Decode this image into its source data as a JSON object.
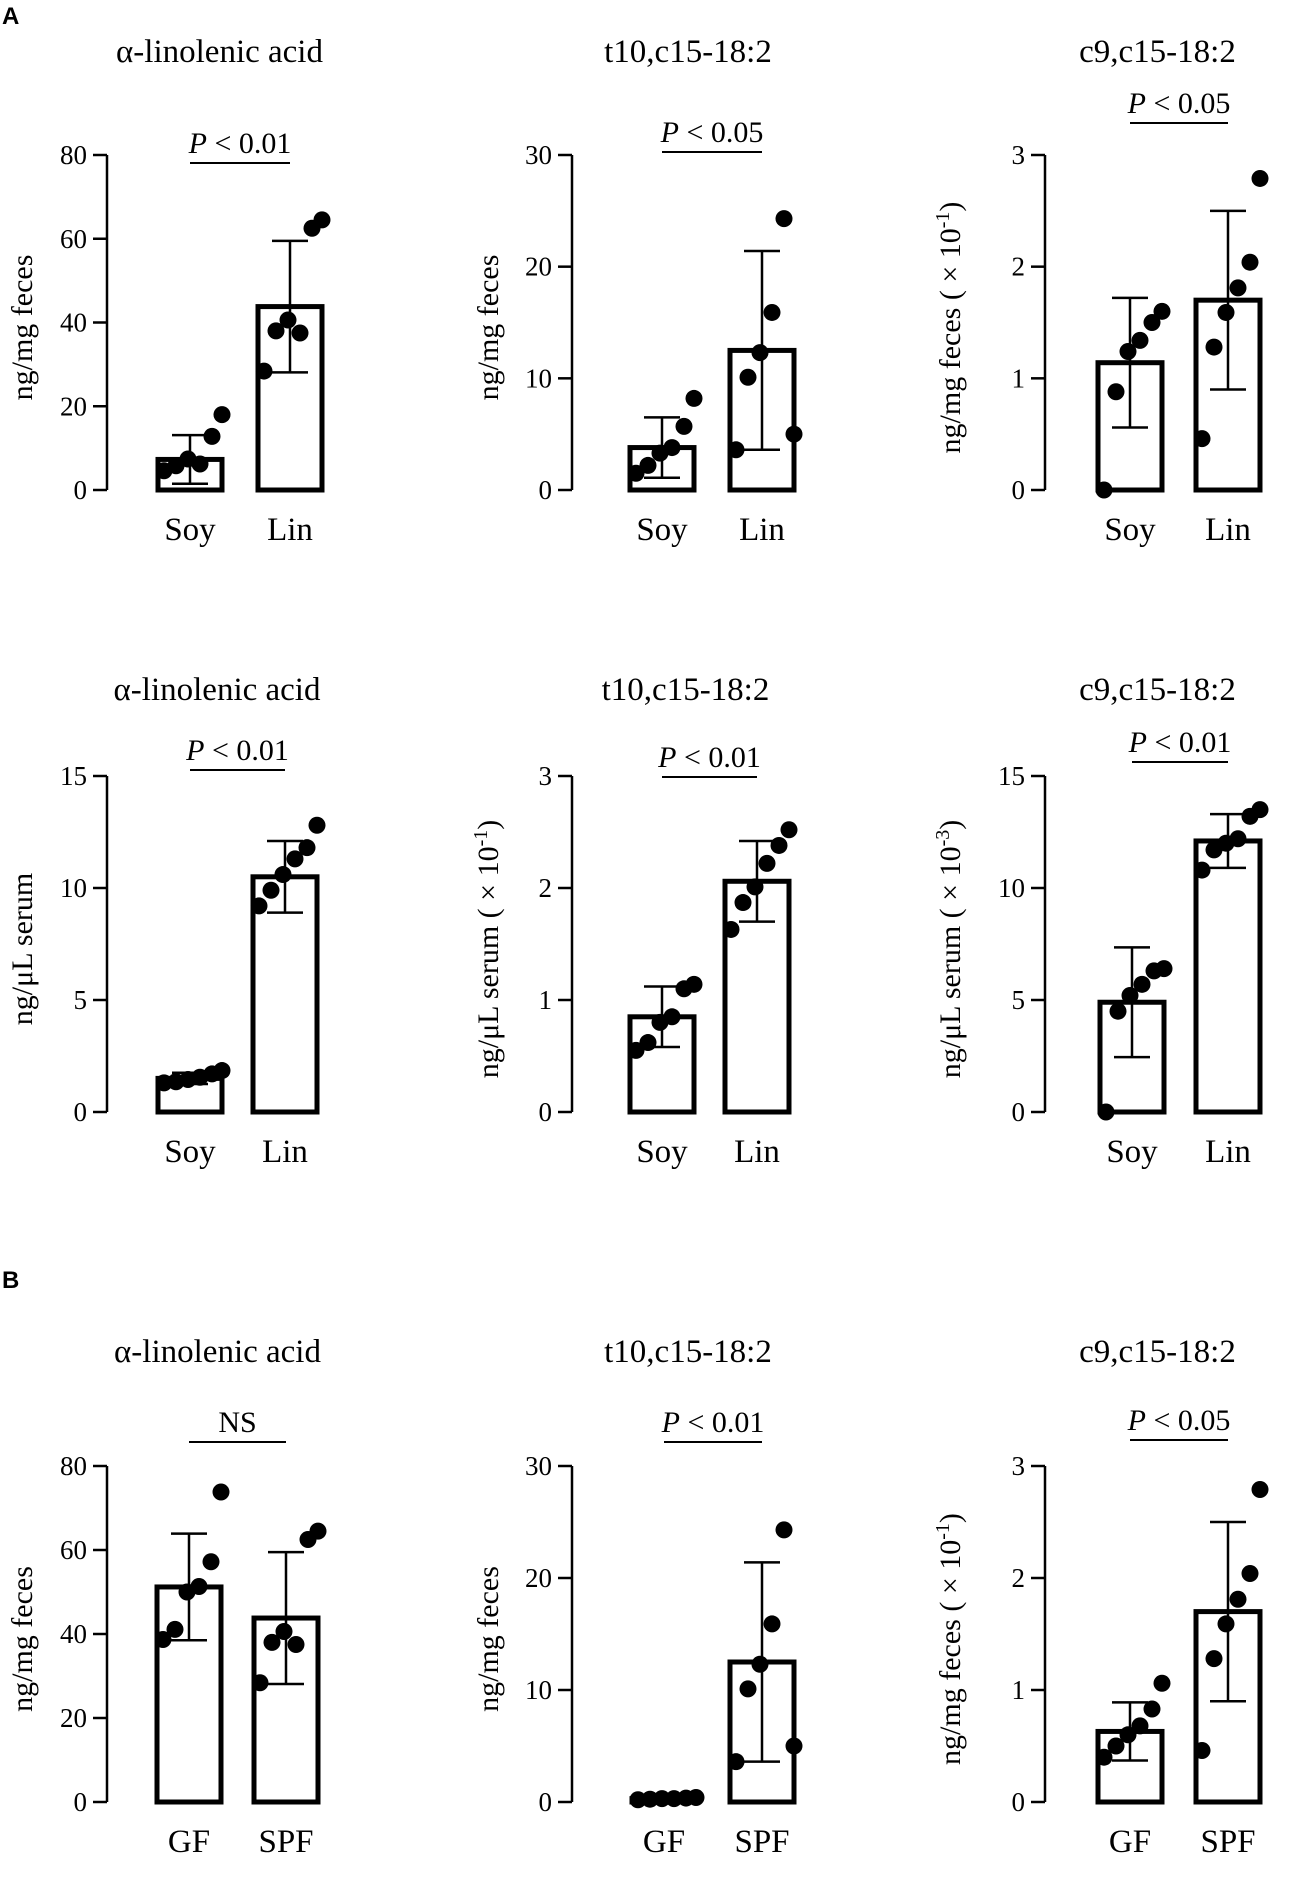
{
  "panel_labels": [
    "A",
    "B"
  ],
  "chart_data": [
    {
      "type": "bar",
      "panel": "A",
      "row": 1,
      "title": "α-linolenic acid",
      "ylabel": "ng/mg feces",
      "ylabel_sup": "",
      "ylim": [
        0,
        80
      ],
      "yticks": [
        0,
        20,
        40,
        60,
        80
      ],
      "categories": [
        "Soy",
        "Lin"
      ],
      "means": [
        7.3,
        43.8
      ],
      "sd": [
        5.8,
        15.7
      ],
      "points": [
        [
          4.6,
          5.8,
          7.4,
          6.2,
          12.8,
          18.0
        ],
        [
          28.4,
          38.0,
          40.6,
          37.5,
          62.5,
          64.5
        ]
      ],
      "significance": "P < 0.01"
    },
    {
      "type": "bar",
      "panel": "A",
      "row": 1,
      "title": "t10,c15-18:2",
      "ylabel": "ng/mg feces",
      "ylabel_sup": "",
      "ylim": [
        0,
        30
      ],
      "yticks": [
        0,
        10,
        20,
        30
      ],
      "categories": [
        "Soy",
        "Lin"
      ],
      "means": [
        3.8,
        12.5
      ],
      "sd": [
        2.7,
        8.9
      ],
      "points": [
        [
          1.5,
          2.2,
          3.3,
          3.8,
          5.7,
          8.2
        ],
        [
          3.6,
          10.1,
          12.3,
          15.9,
          24.3,
          5.0
        ]
      ],
      "significance": "P < 0.05"
    },
    {
      "type": "bar",
      "panel": "A",
      "row": 1,
      "title": "c9,c15-18:2",
      "ylabel": "ng/mg feces ( × 10",
      "ylabel_sup": "-1",
      "ylabel_end": ")",
      "ylim": [
        0,
        3
      ],
      "yticks": [
        0,
        1,
        2,
        3
      ],
      "categories": [
        "Soy",
        "Lin"
      ],
      "means": [
        1.14,
        1.7
      ],
      "sd": [
        0.58,
        0.8
      ],
      "points": [
        [
          0.0,
          0.88,
          1.24,
          1.34,
          1.5,
          1.6
        ],
        [
          0.46,
          1.28,
          1.59,
          1.81,
          2.04,
          2.79
        ]
      ],
      "significance": "P < 0.05"
    },
    {
      "type": "bar",
      "panel": "A",
      "row": 2,
      "title": "α-linolenic acid",
      "ylabel": "ng/μL serum",
      "ylabel_sup": "",
      "ylim": [
        0,
        15
      ],
      "yticks": [
        0,
        5,
        10,
        15
      ],
      "categories": [
        "Soy",
        "Lin"
      ],
      "means": [
        1.5,
        10.5
      ],
      "sd": [
        0.25,
        1.6
      ],
      "points": [
        [
          1.3,
          1.35,
          1.45,
          1.55,
          1.7,
          1.85
        ],
        [
          9.2,
          9.9,
          10.6,
          11.3,
          11.8,
          12.8
        ]
      ],
      "significance": "P < 0.01"
    },
    {
      "type": "bar",
      "panel": "A",
      "row": 2,
      "title": "t10,c15-18:2",
      "ylabel": "ng/μL serum ( × 10",
      "ylabel_sup": "-1",
      "ylabel_end": ")",
      "ylim": [
        0,
        3
      ],
      "yticks": [
        0,
        1,
        2,
        3
      ],
      "categories": [
        "Soy",
        "Lin"
      ],
      "means": [
        0.85,
        2.06
      ],
      "sd": [
        0.27,
        0.36
      ],
      "points": [
        [
          0.55,
          0.62,
          0.8,
          0.85,
          1.1,
          1.14
        ],
        [
          1.63,
          1.87,
          2.01,
          2.22,
          2.38,
          2.52
        ]
      ],
      "significance": "P < 0.01"
    },
    {
      "type": "bar",
      "panel": "A",
      "row": 2,
      "title": "c9,c15-18:2",
      "ylabel": "ng/μL serum ( × 10",
      "ylabel_sup": "-3",
      "ylabel_end": ")",
      "ylim": [
        0,
        15
      ],
      "yticks": [
        0,
        5,
        10,
        15
      ],
      "categories": [
        "Soy",
        "Lin"
      ],
      "means": [
        4.9,
        12.1
      ],
      "sd": [
        2.45,
        1.2
      ],
      "points": [
        [
          0.0,
          4.5,
          5.2,
          5.7,
          6.3,
          6.4
        ],
        [
          10.8,
          11.7,
          12.0,
          12.2,
          13.2,
          13.5
        ]
      ],
      "significance": "P < 0.01"
    },
    {
      "type": "bar",
      "panel": "B",
      "row": 3,
      "title": "α-linolenic acid",
      "ylabel": "ng/mg feces",
      "ylabel_sup": "",
      "ylim": [
        0,
        80
      ],
      "yticks": [
        0,
        20,
        40,
        60,
        80
      ],
      "categories": [
        "GF",
        "SPF"
      ],
      "means": [
        51.2,
        43.8
      ],
      "sd": [
        12.7,
        15.7
      ],
      "points": [
        [
          38.7,
          41.1,
          50.0,
          51.3,
          57.2,
          73.8
        ],
        [
          28.4,
          38.0,
          40.6,
          37.5,
          62.5,
          64.5
        ]
      ],
      "significance": "NS"
    },
    {
      "type": "bar",
      "panel": "B",
      "row": 3,
      "title": "t10,c15-18:2",
      "ylabel": "ng/mg feces",
      "ylabel_sup": "",
      "ylim": [
        0,
        30
      ],
      "yticks": [
        0,
        10,
        20,
        30
      ],
      "categories": [
        "GF",
        "SPF"
      ],
      "means": [
        0.3,
        12.5
      ],
      "sd": [
        0.1,
        8.9
      ],
      "points": [
        [
          0.2,
          0.25,
          0.3,
          0.3,
          0.35,
          0.4
        ],
        [
          3.6,
          10.1,
          12.3,
          15.9,
          24.3,
          5.0
        ]
      ],
      "significance": "P < 0.01"
    },
    {
      "type": "bar",
      "panel": "B",
      "row": 3,
      "title": "c9,c15-18:2",
      "ylabel": "ng/mg feces ( × 10",
      "ylabel_sup": "-1",
      "ylabel_end": ")",
      "ylim": [
        0,
        3
      ],
      "yticks": [
        0,
        1,
        2,
        3
      ],
      "categories": [
        "GF",
        "SPF"
      ],
      "means": [
        0.63,
        1.7
      ],
      "sd": [
        0.26,
        0.8
      ],
      "points": [
        [
          0.4,
          0.5,
          0.6,
          0.68,
          0.83,
          1.06
        ],
        [
          0.46,
          1.28,
          1.59,
          1.81,
          2.04,
          2.79
        ]
      ],
      "significance": "P < 0.05"
    }
  ]
}
